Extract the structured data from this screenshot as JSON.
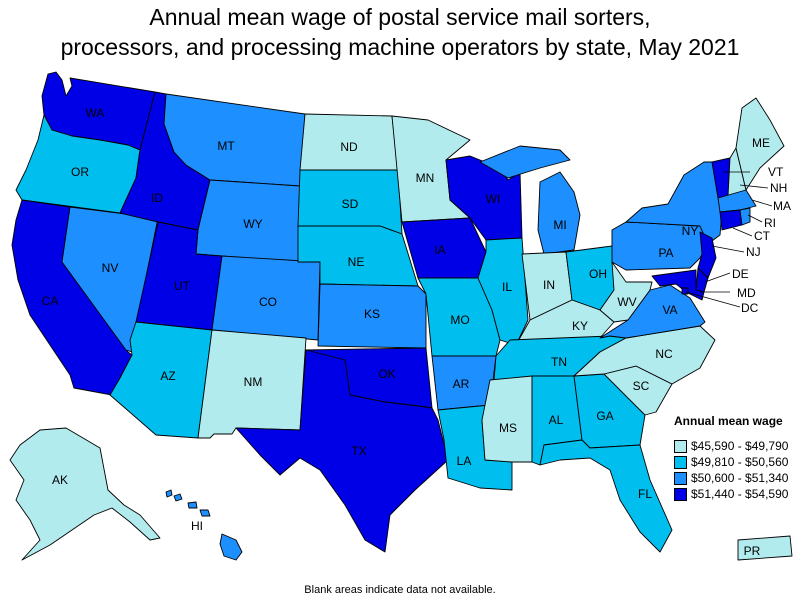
{
  "title_line1": "Annual mean wage of postal service mail sorters,",
  "title_line2": "processors, and processing machine operators by state, May 2021",
  "legend": {
    "title": "Annual mean wage",
    "items": [
      {
        "label": "$45,590 - $49,790",
        "color": "#b2ebee"
      },
      {
        "label": "$49,810 - $50,560",
        "color": "#00bfef"
      },
      {
        "label": "$50,600 - $51,340",
        "color": "#1e8fff"
      },
      {
        "label": "$51,440 - $54,590",
        "color": "#0000e6"
      }
    ]
  },
  "footnote": "Blank areas indicate data not available.",
  "states": {
    "WA": {
      "label": "WA",
      "bin": 4
    },
    "OR": {
      "label": "OR",
      "bin": 2
    },
    "CA": {
      "label": "CA",
      "bin": 4
    },
    "NV": {
      "label": "NV",
      "bin": 3
    },
    "ID": {
      "label": "ID",
      "bin": 4
    },
    "MT": {
      "label": "MT",
      "bin": 3
    },
    "WY": {
      "label": "WY",
      "bin": 3
    },
    "UT": {
      "label": "UT",
      "bin": 4
    },
    "AZ": {
      "label": "AZ",
      "bin": 2
    },
    "CO": {
      "label": "CO",
      "bin": 3
    },
    "NM": {
      "label": "NM",
      "bin": 1
    },
    "ND": {
      "label": "ND",
      "bin": 1
    },
    "SD": {
      "label": "SD",
      "bin": 2
    },
    "NE": {
      "label": "NE",
      "bin": 2
    },
    "KS": {
      "label": "KS",
      "bin": 3
    },
    "OK": {
      "label": "OK",
      "bin": 4
    },
    "TX": {
      "label": "TX",
      "bin": 4
    },
    "MN": {
      "label": "MN",
      "bin": 1
    },
    "IA": {
      "label": "IA",
      "bin": 4
    },
    "MO": {
      "label": "MO",
      "bin": 2
    },
    "AR": {
      "label": "AR",
      "bin": 3
    },
    "LA": {
      "label": "LA",
      "bin": 2
    },
    "WI": {
      "label": "WI",
      "bin": 4
    },
    "IL": {
      "label": "IL",
      "bin": 2
    },
    "MI": {
      "label": "MI",
      "bin": 3
    },
    "IN": {
      "label": "IN",
      "bin": 1
    },
    "OH": {
      "label": "OH",
      "bin": 2
    },
    "KY": {
      "label": "KY",
      "bin": 1
    },
    "TN": {
      "label": "TN",
      "bin": 2
    },
    "MS": {
      "label": "MS",
      "bin": 1
    },
    "AL": {
      "label": "AL",
      "bin": 2
    },
    "GA": {
      "label": "GA",
      "bin": 2
    },
    "FL": {
      "label": "FL",
      "bin": 2
    },
    "SC": {
      "label": "SC",
      "bin": 1
    },
    "NC": {
      "label": "NC",
      "bin": 1
    },
    "VA": {
      "label": "VA",
      "bin": 3
    },
    "WV": {
      "label": "WV",
      "bin": 1
    },
    "PA": {
      "label": "PA",
      "bin": 3
    },
    "NY": {
      "label": "NY",
      "bin": 3
    },
    "ME": {
      "label": "ME",
      "bin": 1
    },
    "VT": {
      "label": "VT",
      "bin": 4
    },
    "NH": {
      "label": "NH",
      "bin": 1
    },
    "MA": {
      "label": "MA",
      "bin": 3
    },
    "RI": {
      "label": "RI",
      "bin": 3
    },
    "CT": {
      "label": "CT",
      "bin": 4
    },
    "NJ": {
      "label": "NJ",
      "bin": 4
    },
    "DE": {
      "label": "DE",
      "bin": 4
    },
    "MD": {
      "label": "MD",
      "bin": 4
    },
    "DC": {
      "label": "DC",
      "bin": 4
    },
    "AK": {
      "label": "AK",
      "bin": 1
    },
    "HI": {
      "label": "HI",
      "bin": 3
    },
    "PR": {
      "label": "PR",
      "bin": 1
    }
  }
}
